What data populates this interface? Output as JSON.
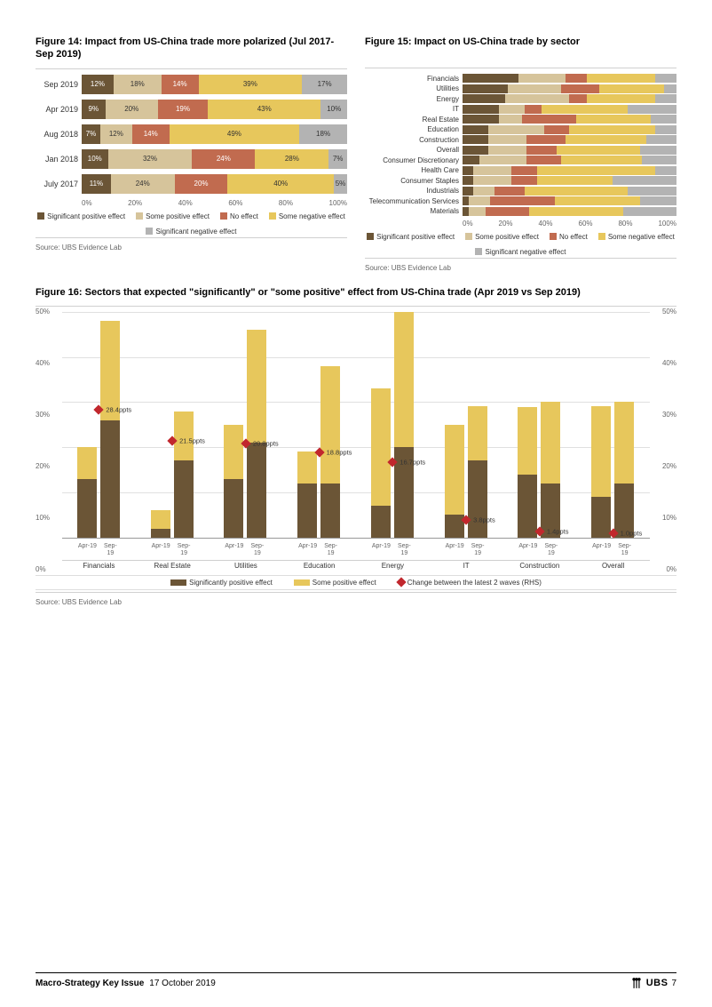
{
  "colors": {
    "sig_pos": "#6b5536",
    "some_pos": "#d6c49b",
    "no_eff": "#c16b4f",
    "some_neg": "#e7c75c",
    "sig_neg": "#b3b3b3",
    "marker": "#c1272d",
    "grid": "#e0e0e0"
  },
  "fig14": {
    "title": "Figure 14: Impact from US-China trade more polarized (Jul 2017-Sep 2019)",
    "source": "Source:  UBS Evidence Lab",
    "xticks": [
      "0%",
      "20%",
      "40%",
      "60%",
      "80%",
      "100%"
    ],
    "rows": [
      {
        "label": "Sep 2019",
        "segs": [
          {
            "v": 12,
            "t": "12%"
          },
          {
            "v": 18,
            "t": "18%"
          },
          {
            "v": 14,
            "t": "14%"
          },
          {
            "v": 39,
            "t": "39%"
          },
          {
            "v": 17,
            "t": "17%"
          }
        ]
      },
      {
        "label": "Apr 2019",
        "segs": [
          {
            "v": 9,
            "t": "9%"
          },
          {
            "v": 20,
            "t": "20%"
          },
          {
            "v": 19,
            "t": "19%"
          },
          {
            "v": 43,
            "t": "43%"
          },
          {
            "v": 10,
            "t": "10%"
          }
        ]
      },
      {
        "label": "Aug 2018",
        "segs": [
          {
            "v": 7,
            "t": "7%"
          },
          {
            "v": 12,
            "t": "12%"
          },
          {
            "v": 14,
            "t": "14%"
          },
          {
            "v": 49,
            "t": "49%"
          },
          {
            "v": 18,
            "t": "18%"
          }
        ]
      },
      {
        "label": "Jan 2018",
        "segs": [
          {
            "v": 10,
            "t": "10%"
          },
          {
            "v": 32,
            "t": "32%"
          },
          {
            "v": 24,
            "t": "24%"
          },
          {
            "v": 28,
            "t": "28%"
          },
          {
            "v": 7,
            "t": "7%"
          }
        ]
      },
      {
        "label": "July 2017",
        "segs": [
          {
            "v": 11,
            "t": "11%"
          },
          {
            "v": 24,
            "t": "24%"
          },
          {
            "v": 20,
            "t": "20%"
          },
          {
            "v": 40,
            "t": "40%"
          },
          {
            "v": 5,
            "t": "5%"
          }
        ]
      }
    ]
  },
  "fig15": {
    "title": "Figure 15: Impact on US-China trade by sector",
    "source": "Source:  UBS Evidence Lab",
    "xticks": [
      "0%",
      "20%",
      "40%",
      "60%",
      "80%",
      "100%"
    ],
    "rows": [
      {
        "label": "Financials",
        "segs": [
          26,
          22,
          10,
          32,
          10
        ]
      },
      {
        "label": "Utilities",
        "segs": [
          21,
          25,
          18,
          30,
          6
        ]
      },
      {
        "label": "Energy",
        "segs": [
          20,
          30,
          8,
          32,
          10
        ]
      },
      {
        "label": "IT",
        "segs": [
          17,
          12,
          8,
          40,
          23
        ]
      },
      {
        "label": "Real Estate",
        "segs": [
          17,
          11,
          25,
          35,
          12
        ]
      },
      {
        "label": "Education",
        "segs": [
          12,
          26,
          12,
          40,
          10
        ]
      },
      {
        "label": "Construction",
        "segs": [
          12,
          18,
          18,
          38,
          14
        ]
      },
      {
        "label": "Overall",
        "segs": [
          12,
          18,
          14,
          39,
          17
        ]
      },
      {
        "label": "Consumer Discretionary",
        "segs": [
          8,
          22,
          16,
          38,
          16
        ]
      },
      {
        "label": "Health Care",
        "segs": [
          5,
          18,
          12,
          55,
          10
        ]
      },
      {
        "label": "Consumer Staples",
        "segs": [
          5,
          18,
          12,
          35,
          30
        ]
      },
      {
        "label": "Industrials",
        "segs": [
          5,
          10,
          14,
          48,
          23
        ]
      },
      {
        "label": "Telecommunication Services",
        "segs": [
          3,
          10,
          30,
          40,
          17
        ]
      },
      {
        "label": "Materials",
        "segs": [
          3,
          8,
          20,
          44,
          25
        ]
      }
    ]
  },
  "legend_small": [
    "Significant positive effect",
    "Some positive effect",
    "No effect",
    "Some negative effect",
    "Significant negative effect"
  ],
  "fig16": {
    "title": "Figure 16: Sectors that expected \"significantly\" or \"some positive\" effect from US-China trade (Apr 2019 vs Sep 2019)",
    "source": "Source:  UBS Evidence Lab",
    "ymax": 50,
    "yticks": [
      "0%",
      "10%",
      "20%",
      "30%",
      "40%",
      "50%"
    ],
    "periods": [
      "Apr-19",
      "Sep-19"
    ],
    "groups": [
      {
        "name": "Financials",
        "bars": [
          {
            "sp": 13,
            "so": 7
          },
          {
            "sp": 26,
            "so": 22
          }
        ],
        "diff": "28.4ppts",
        "diff_y": 28.4
      },
      {
        "name": "Real Estate",
        "bars": [
          {
            "sp": 2,
            "so": 4
          },
          {
            "sp": 17,
            "so": 11
          }
        ],
        "diff": "21.5ppts",
        "diff_y": 21.5
      },
      {
        "name": "Utilities",
        "bars": [
          {
            "sp": 13,
            "so": 12
          },
          {
            "sp": 21,
            "so": 25
          }
        ],
        "diff": "20.8ppts",
        "diff_y": 20.8
      },
      {
        "name": "Education",
        "bars": [
          {
            "sp": 12,
            "so": 7
          },
          {
            "sp": 12,
            "so": 26
          }
        ],
        "diff": "18.8ppts",
        "diff_y": 18.8
      },
      {
        "name": "Energy",
        "bars": [
          {
            "sp": 7,
            "so": 26
          },
          {
            "sp": 20,
            "so": 30
          }
        ],
        "diff": "16.7ppts",
        "diff_y": 16.7
      },
      {
        "name": "IT",
        "bars": [
          {
            "sp": 5,
            "so": 20
          },
          {
            "sp": 17,
            "so": 12
          }
        ],
        "diff": "3.8ppts",
        "diff_y": 3.8
      },
      {
        "name": "Construction",
        "bars": [
          {
            "sp": 14,
            "so": 15
          },
          {
            "sp": 12,
            "so": 18
          }
        ],
        "diff": "1.4ppts",
        "diff_y": 1.4
      },
      {
        "name": "Overall",
        "bars": [
          {
            "sp": 9,
            "so": 20
          },
          {
            "sp": 12,
            "so": 18
          }
        ],
        "diff": "1.0ppts",
        "diff_y": 1.0
      }
    ],
    "legend": [
      "Significantly positive effect",
      "Some positive effect",
      "Change between the latest 2 waves (RHS)"
    ]
  },
  "footer": {
    "title": "Macro-Strategy Key Issue",
    "date": "17 October 2019",
    "brand": "UBS",
    "page": "7"
  }
}
